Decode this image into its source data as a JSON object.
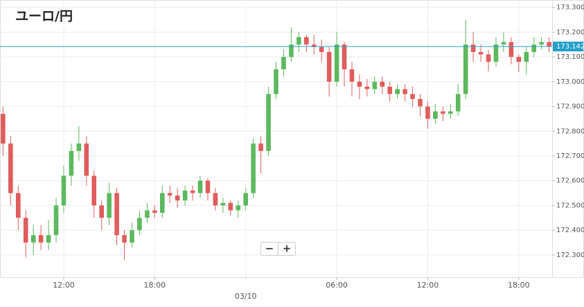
{
  "chart_data": {
    "type": "candlestick",
    "title": "ユーロ/円",
    "x": [
      8,
      8.5,
      9,
      9.5,
      10,
      10.5,
      11,
      11.5,
      12,
      12.5,
      13,
      13.5,
      14,
      14.5,
      15,
      15.5,
      16,
      16.5,
      17,
      17.5,
      18,
      18.5,
      19,
      19.5,
      20,
      20.5,
      21,
      21.5,
      22,
      22.5,
      23,
      23.5,
      24,
      24.5,
      25,
      25.5,
      26,
      26.5,
      27,
      27.5,
      28,
      28.5,
      29,
      29.5,
      30,
      30.5,
      31,
      31.5,
      32,
      32.5,
      33,
      33.5,
      34,
      34.5,
      35,
      35.5,
      36,
      36.5,
      37,
      37.5,
      38,
      38.5,
      39,
      39.5,
      40,
      40.5,
      41,
      41.5,
      42,
      42.5,
      43,
      43.5,
      44
    ],
    "open": [
      172.87,
      172.75,
      172.55,
      172.45,
      172.35,
      172.38,
      172.35,
      172.38,
      172.5,
      172.62,
      172.72,
      172.75,
      172.62,
      172.5,
      172.45,
      172.55,
      172.38,
      172.35,
      172.4,
      172.45,
      172.48,
      172.47,
      172.55,
      172.54,
      172.52,
      172.56,
      172.55,
      172.6,
      172.55,
      172.5,
      172.51,
      172.48,
      172.5,
      172.55,
      172.75,
      172.72,
      172.95,
      173.05,
      173.1,
      173.15,
      173.18,
      173.15,
      173.14,
      173.12,
      173,
      173.15,
      173.05,
      173,
      172.98,
      172.97,
      173,
      172.98,
      172.95,
      172.97,
      172.95,
      172.93,
      172.9,
      172.85,
      172.88,
      172.87,
      172.88,
      172.95,
      173.15,
      173.12,
      173.11,
      173.08,
      173.15,
      173.16,
      173.1,
      173.08,
      173.12,
      173.15,
      173.16
    ],
    "high": [
      172.9,
      172.78,
      172.58,
      172.48,
      172.42,
      172.42,
      172.44,
      172.53,
      172.66,
      172.75,
      172.82,
      172.78,
      172.64,
      172.52,
      172.59,
      172.57,
      172.4,
      172.43,
      172.48,
      172.51,
      172.5,
      172.58,
      172.58,
      172.57,
      172.58,
      172.58,
      172.62,
      172.61,
      172.57,
      172.53,
      172.52,
      172.52,
      172.57,
      172.77,
      172.78,
      172.98,
      173.08,
      173.13,
      173.22,
      173.2,
      173.19,
      173.19,
      173.17,
      173.14,
      173.2,
      173.16,
      173.08,
      173.03,
      173.01,
      173.02,
      173.02,
      173,
      172.99,
      172.99,
      172.98,
      172.95,
      172.92,
      172.91,
      172.9,
      172.91,
      172.99,
      173.25,
      173.2,
      173.15,
      173.13,
      173.18,
      173.2,
      173.18,
      173.11,
      173.14,
      173.18,
      173.18,
      173.18
    ],
    "low": [
      172.7,
      172.5,
      172.4,
      172.29,
      172.3,
      172.32,
      172.32,
      172.35,
      172.47,
      172.58,
      172.68,
      172.58,
      172.45,
      172.4,
      172.42,
      172.34,
      172.28,
      172.33,
      172.38,
      172.43,
      172.45,
      172.45,
      172.51,
      172.49,
      172.5,
      172.52,
      172.53,
      172.52,
      172.48,
      172.47,
      172.46,
      172.45,
      172.48,
      172.53,
      172.63,
      172.7,
      172.93,
      173.02,
      173.08,
      173.12,
      173.12,
      173.11,
      173.08,
      172.94,
      172.98,
      172.98,
      172.94,
      172.93,
      172.94,
      172.95,
      172.95,
      172.92,
      172.93,
      172.92,
      172.9,
      172.86,
      172.81,
      172.83,
      172.84,
      172.85,
      172.86,
      172.93,
      173.08,
      173.08,
      173.04,
      173.06,
      173.12,
      173.07,
      173.04,
      173.03,
      173.1,
      173.13,
      173.12
    ],
    "close": [
      172.75,
      172.55,
      172.45,
      172.35,
      172.38,
      172.35,
      172.38,
      172.5,
      172.62,
      172.72,
      172.75,
      172.62,
      172.5,
      172.45,
      172.55,
      172.38,
      172.35,
      172.4,
      172.45,
      172.48,
      172.47,
      172.55,
      172.54,
      172.52,
      172.56,
      172.55,
      172.6,
      172.55,
      172.5,
      172.51,
      172.48,
      172.5,
      172.55,
      172.75,
      172.72,
      172.95,
      173.05,
      173.1,
      173.15,
      173.18,
      173.15,
      173.14,
      173.12,
      173,
      173.15,
      173.05,
      173,
      172.98,
      172.97,
      173,
      172.98,
      172.95,
      172.97,
      172.95,
      172.93,
      172.9,
      172.85,
      172.88,
      172.87,
      172.88,
      172.95,
      173.15,
      173.12,
      173.11,
      173.08,
      173.15,
      173.16,
      173.1,
      173.08,
      173.12,
      173.15,
      173.16,
      173.142
    ],
    "up_color": "#5cb85c",
    "down_color": "#e05c5c",
    "last_price": 173.142,
    "last_price_color": "#21a0c8",
    "xlim": [
      7.8,
      44.2
    ],
    "ylim": [
      172.21,
      173.33
    ],
    "xticks": [
      {
        "value": 12,
        "label": "12:00"
      },
      {
        "value": 18,
        "label": "18:00"
      },
      {
        "value": 24,
        "label": "03/10"
      },
      {
        "value": 30,
        "label": "06:00"
      },
      {
        "value": 36,
        "label": "12:00"
      },
      {
        "value": 42,
        "label": "18:00"
      }
    ],
    "yticks": [
      {
        "value": 172.3,
        "label": "172.300"
      },
      {
        "value": 172.4,
        "label": "172.400"
      },
      {
        "value": 172.5,
        "label": "172.500"
      },
      {
        "value": 172.6,
        "label": "172.600"
      },
      {
        "value": 172.7,
        "label": "172.700"
      },
      {
        "value": 172.8,
        "label": "172.800"
      },
      {
        "value": 172.9,
        "label": "172.900"
      },
      {
        "value": 173,
        "label": "173.000"
      },
      {
        "value": 173.1,
        "label": "173.100"
      },
      {
        "value": 173.2,
        "label": "173.200"
      },
      {
        "value": 173.3,
        "label": "173.300"
      }
    ],
    "grid": true
  },
  "controls": {
    "zoom_out": "−",
    "zoom_in": "+"
  }
}
